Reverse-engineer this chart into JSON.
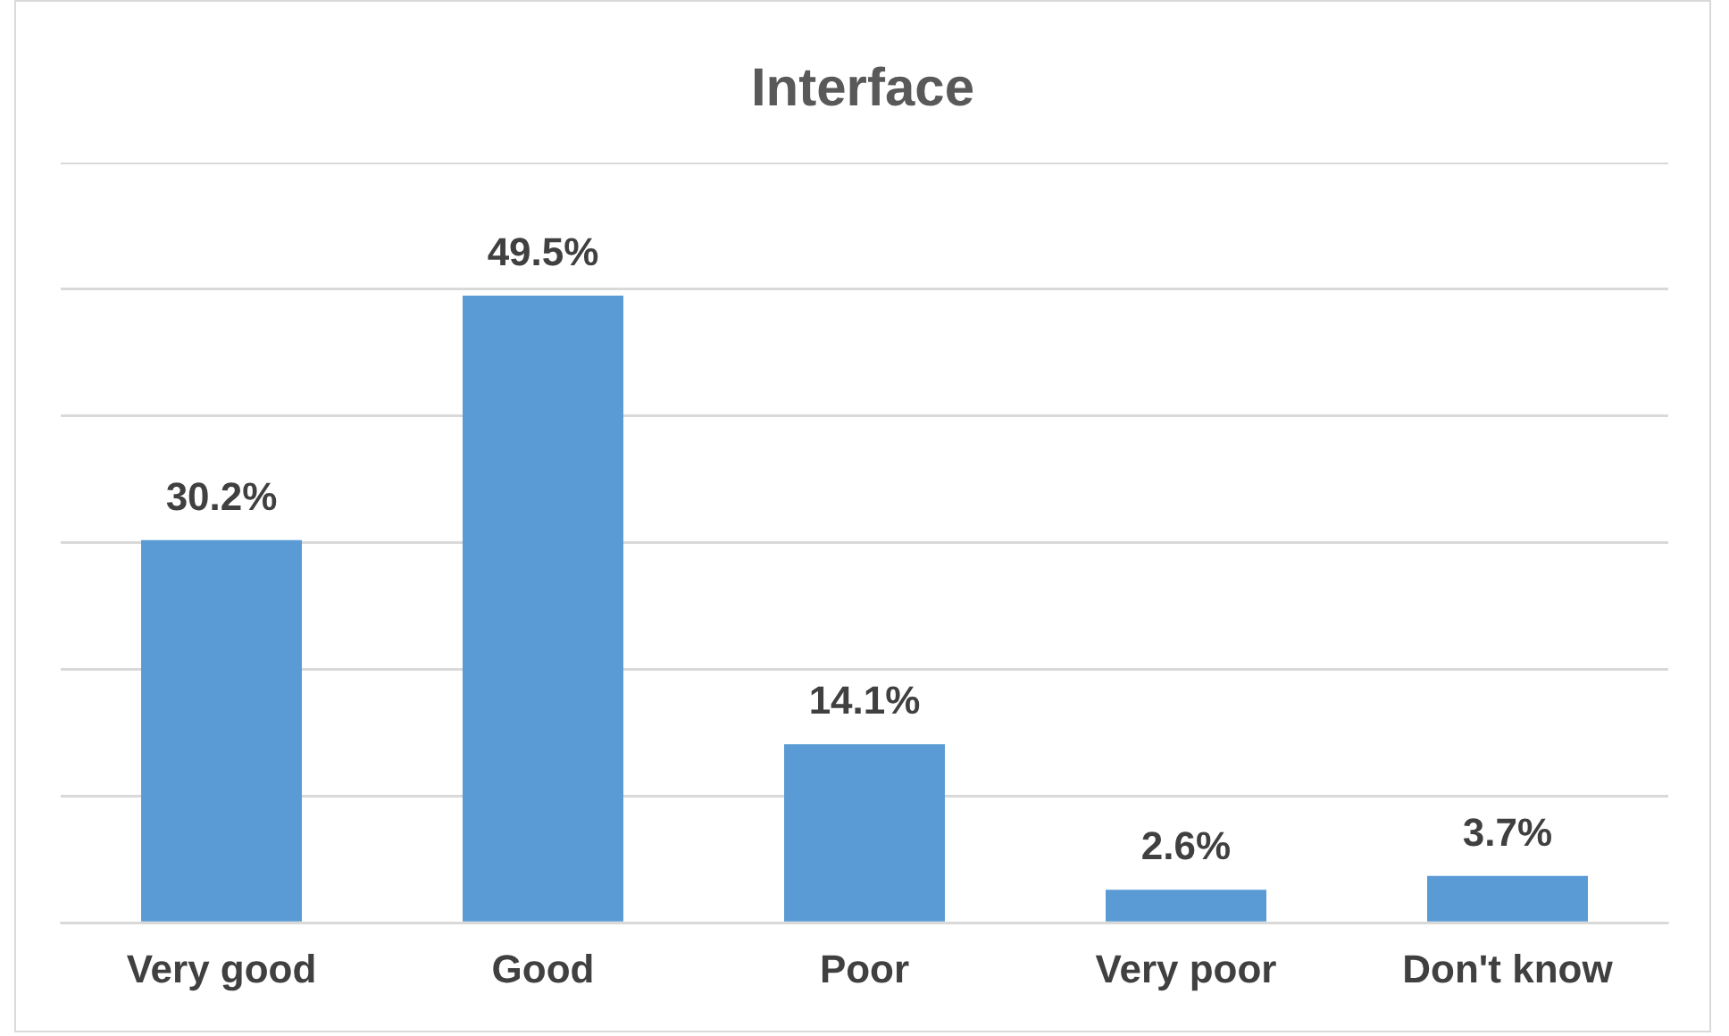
{
  "chart_data": {
    "type": "bar",
    "title": "Interface",
    "categories": [
      "Very good",
      "Good",
      "Poor",
      "Very poor",
      "Don't know"
    ],
    "series": [
      {
        "color": "#5b9bd5",
        "values": [
          30.2,
          49.5,
          14.1,
          2.6,
          3.7
        ],
        "value_labels": [
          "30.2%",
          "49.5%",
          "14.1%",
          "2.6%",
          "3.7%"
        ]
      }
    ],
    "ylim": [
      0,
      60
    ],
    "yticks": [
      {
        "value": 0,
        "label": null
      },
      {
        "value": 10,
        "label": null
      },
      {
        "value": 20,
        "label": null
      },
      {
        "value": 30,
        "label": null
      },
      {
        "value": 40,
        "label": null
      },
      {
        "value": 50,
        "label": null
      },
      {
        "value": 60,
        "label": null
      }
    ],
    "grid": "y",
    "tick_labels": "x",
    "legend": false
  }
}
